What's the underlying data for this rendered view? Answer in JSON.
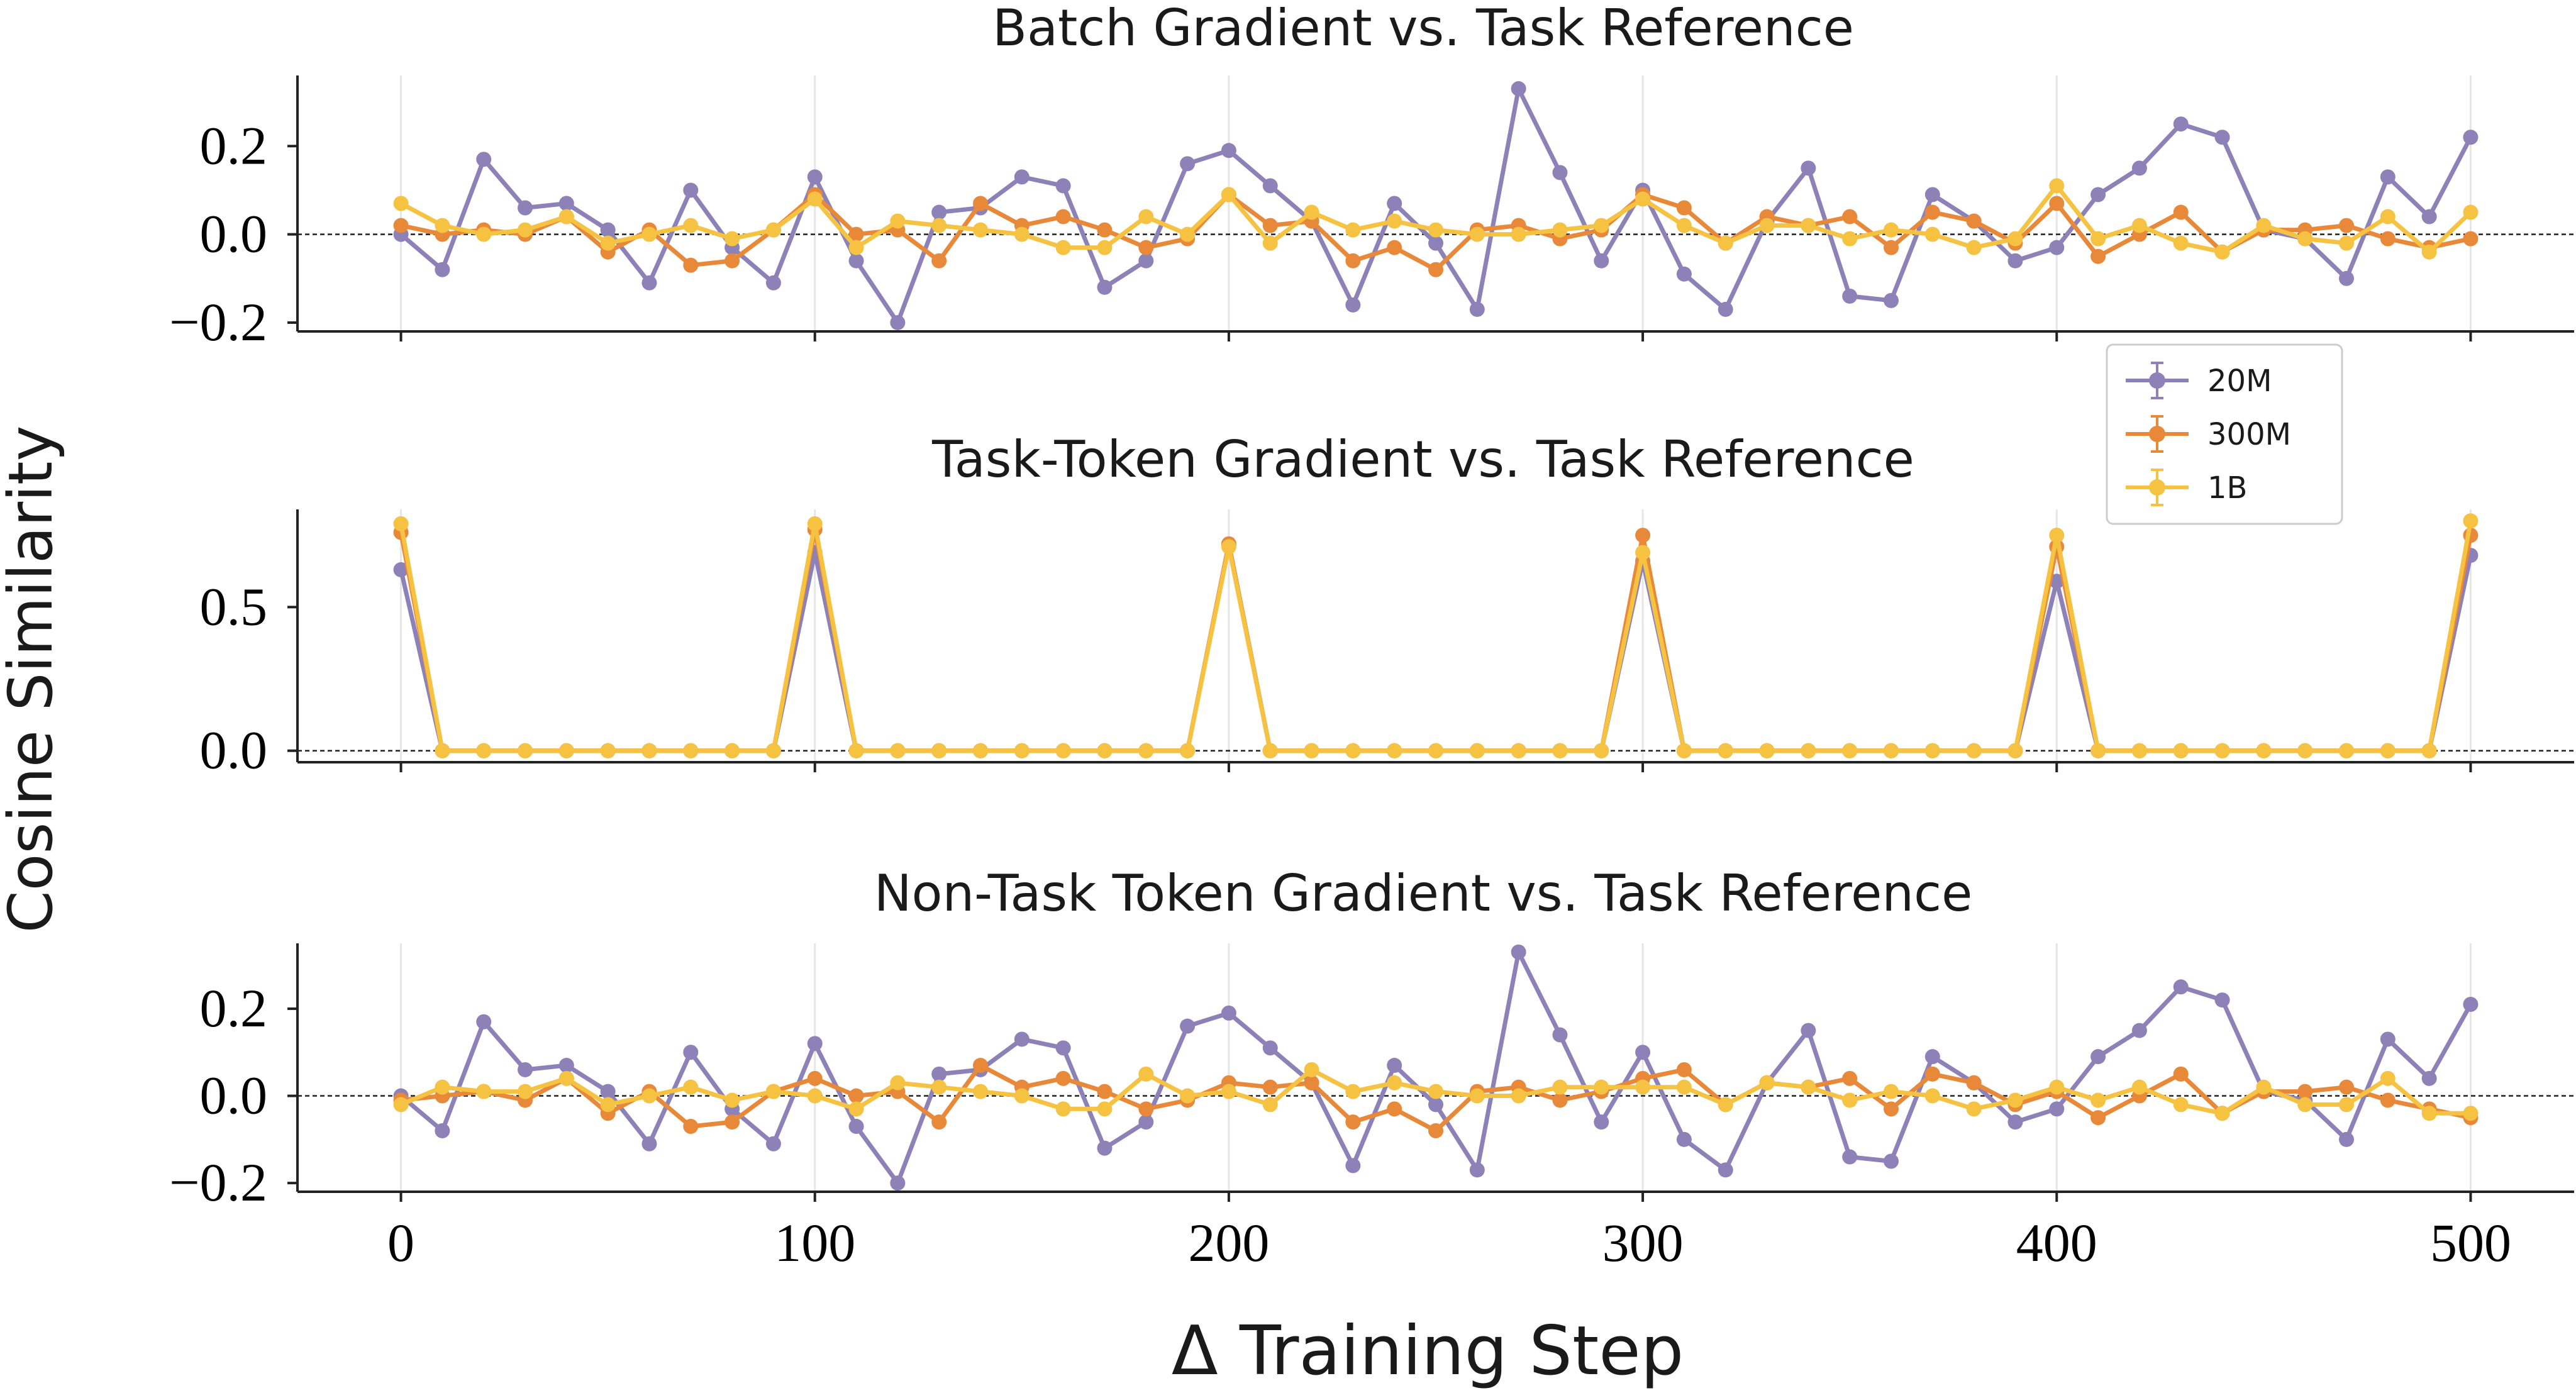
{
  "chart_data": [
    {
      "type": "line",
      "title": "Batch Gradient vs. Task Reference",
      "yticks": [
        -0.2,
        0.0,
        0.2
      ],
      "ytick_labels": [
        "−0.2",
        "0.0",
        "0.2"
      ],
      "ylim": [
        -0.22,
        0.36
      ],
      "xlim": [
        -25,
        525
      ],
      "x": [
        0,
        10,
        20,
        30,
        40,
        50,
        60,
        70,
        80,
        90,
        100,
        110,
        120,
        130,
        140,
        150,
        160,
        170,
        180,
        190,
        200,
        210,
        220,
        230,
        240,
        250,
        260,
        270,
        280,
        290,
        300,
        310,
        320,
        330,
        340,
        350,
        360,
        370,
        380,
        390,
        400,
        410,
        420,
        430,
        440,
        450,
        460,
        470,
        480,
        490,
        500
      ],
      "zero_reference_line": true,
      "series": [
        {
          "name": "20M",
          "color": "#8c82b8",
          "values": [
            0.0,
            -0.08,
            0.17,
            0.06,
            0.07,
            0.01,
            -0.11,
            0.1,
            -0.03,
            -0.11,
            0.13,
            -0.06,
            -0.2,
            0.05,
            0.06,
            0.13,
            0.11,
            -0.12,
            -0.06,
            0.16,
            0.19,
            0.11,
            0.03,
            -0.16,
            0.07,
            -0.02,
            -0.17,
            0.33,
            0.14,
            -0.06,
            0.1,
            -0.09,
            -0.17,
            0.03,
            0.15,
            -0.14,
            -0.15,
            0.09,
            0.03,
            -0.06,
            -0.03,
            0.09,
            0.15,
            0.25,
            0.22,
            0.01,
            -0.01,
            -0.1,
            0.13,
            0.04,
            0.22
          ]
        },
        {
          "name": "300M",
          "color": "#e8893a",
          "values": [
            0.02,
            0.0,
            0.01,
            0.0,
            0.04,
            -0.04,
            0.01,
            -0.07,
            -0.06,
            0.01,
            0.09,
            0.0,
            0.01,
            -0.06,
            0.07,
            0.02,
            0.04,
            0.01,
            -0.03,
            -0.01,
            0.09,
            0.02,
            0.03,
            -0.06,
            -0.03,
            -0.08,
            0.01,
            0.02,
            -0.01,
            0.01,
            0.09,
            0.06,
            -0.02,
            0.04,
            0.02,
            0.04,
            -0.03,
            0.05,
            0.03,
            -0.02,
            0.07,
            -0.05,
            0.0,
            0.05,
            -0.04,
            0.01,
            0.01,
            0.02,
            -0.01,
            -0.03,
            -0.01
          ]
        },
        {
          "name": "1B",
          "color": "#f5c242",
          "values": [
            0.07,
            0.02,
            0.0,
            0.01,
            0.04,
            -0.02,
            0.0,
            0.02,
            -0.01,
            0.01,
            0.08,
            -0.03,
            0.03,
            0.02,
            0.01,
            0.0,
            -0.03,
            -0.03,
            0.04,
            0.0,
            0.09,
            -0.02,
            0.05,
            0.01,
            0.03,
            0.01,
            0.0,
            0.0,
            0.01,
            0.02,
            0.08,
            0.02,
            -0.02,
            0.02,
            0.02,
            -0.01,
            0.01,
            0.0,
            -0.03,
            -0.01,
            0.11,
            -0.01,
            0.02,
            -0.02,
            -0.04,
            0.02,
            -0.01,
            -0.02,
            0.04,
            -0.04,
            0.05
          ]
        }
      ]
    },
    {
      "type": "line",
      "title": "Task-Token Gradient vs. Task Reference",
      "yticks": [
        0.0,
        0.5
      ],
      "ytick_labels": [
        "0.0",
        "0.5"
      ],
      "ylim": [
        -0.04,
        0.84
      ],
      "xlim": [
        -25,
        525
      ],
      "x": [
        0,
        10,
        20,
        30,
        40,
        50,
        60,
        70,
        80,
        90,
        100,
        110,
        120,
        130,
        140,
        150,
        160,
        170,
        180,
        190,
        200,
        210,
        220,
        230,
        240,
        250,
        260,
        270,
        280,
        290,
        300,
        310,
        320,
        330,
        340,
        350,
        360,
        370,
        380,
        390,
        400,
        410,
        420,
        430,
        440,
        450,
        460,
        470,
        480,
        490,
        500
      ],
      "zero_reference_line": true,
      "series": [
        {
          "name": "20M",
          "color": "#8c82b8",
          "values": [
            0.63,
            0,
            0,
            0,
            0,
            0,
            0,
            0,
            0,
            0,
            0.69,
            0,
            0,
            0,
            0,
            0,
            0,
            0,
            0,
            0,
            0.72,
            0,
            0,
            0,
            0,
            0,
            0,
            0,
            0,
            0,
            0.66,
            0,
            0,
            0,
            0,
            0,
            0,
            0,
            0,
            0,
            0.59,
            0,
            0,
            0,
            0,
            0,
            0,
            0,
            0,
            0,
            0.68
          ]
        },
        {
          "name": "300M",
          "color": "#e8893a",
          "values": [
            0.76,
            0,
            0,
            0,
            0,
            0,
            0,
            0,
            0,
            0,
            0.77,
            0,
            0,
            0,
            0,
            0,
            0,
            0,
            0,
            0,
            0.72,
            0,
            0,
            0,
            0,
            0,
            0,
            0,
            0,
            0,
            0.75,
            0,
            0,
            0,
            0,
            0,
            0,
            0,
            0,
            0,
            0.71,
            0,
            0,
            0,
            0,
            0,
            0,
            0,
            0,
            0,
            0.75
          ]
        },
        {
          "name": "1B",
          "color": "#f5c242",
          "values": [
            0.79,
            0,
            0,
            0,
            0,
            0,
            0,
            0,
            0,
            0,
            0.79,
            0,
            0,
            0,
            0,
            0,
            0,
            0,
            0,
            0,
            0.71,
            0,
            0,
            0,
            0,
            0,
            0,
            0,
            0,
            0,
            0.69,
            0,
            0,
            0,
            0,
            0,
            0,
            0,
            0,
            0,
            0.75,
            0,
            0,
            0,
            0,
            0,
            0,
            0,
            0,
            0,
            0.8
          ]
        }
      ]
    },
    {
      "type": "line",
      "title": "Non-Task Token Gradient vs. Task Reference",
      "yticks": [
        -0.2,
        0.0,
        0.2
      ],
      "ytick_labels": [
        "−0.2",
        "0.0",
        "0.2"
      ],
      "ylim": [
        -0.22,
        0.35
      ],
      "xlim": [
        -25,
        525
      ],
      "xticks": [
        0,
        100,
        200,
        300,
        400,
        500
      ],
      "xtick_labels": [
        "0",
        "100",
        "200",
        "300",
        "400",
        "500"
      ],
      "x": [
        0,
        10,
        20,
        30,
        40,
        50,
        60,
        70,
        80,
        90,
        100,
        110,
        120,
        130,
        140,
        150,
        160,
        170,
        180,
        190,
        200,
        210,
        220,
        230,
        240,
        250,
        260,
        270,
        280,
        290,
        300,
        310,
        320,
        330,
        340,
        350,
        360,
        370,
        380,
        390,
        400,
        410,
        420,
        430,
        440,
        450,
        460,
        470,
        480,
        490,
        500
      ],
      "zero_reference_line": true,
      "series": [
        {
          "name": "20M",
          "color": "#8c82b8",
          "values": [
            0.0,
            -0.08,
            0.17,
            0.06,
            0.07,
            0.01,
            -0.11,
            0.1,
            -0.03,
            -0.11,
            0.12,
            -0.07,
            -0.2,
            0.05,
            0.06,
            0.13,
            0.11,
            -0.12,
            -0.06,
            0.16,
            0.19,
            0.11,
            0.03,
            -0.16,
            0.07,
            -0.02,
            -0.17,
            0.33,
            0.14,
            -0.06,
            0.1,
            -0.1,
            -0.17,
            0.03,
            0.15,
            -0.14,
            -0.15,
            0.09,
            0.03,
            -0.06,
            -0.03,
            0.09,
            0.15,
            0.25,
            0.22,
            0.01,
            -0.01,
            -0.1,
            0.13,
            0.04,
            0.21
          ]
        },
        {
          "name": "300M",
          "color": "#e8893a",
          "values": [
            -0.01,
            0.0,
            0.01,
            -0.01,
            0.04,
            -0.04,
            0.01,
            -0.07,
            -0.06,
            0.01,
            0.04,
            0.0,
            0.01,
            -0.06,
            0.07,
            0.02,
            0.04,
            0.01,
            -0.03,
            -0.01,
            0.03,
            0.02,
            0.03,
            -0.06,
            -0.03,
            -0.08,
            0.01,
            0.02,
            -0.01,
            0.01,
            0.04,
            0.06,
            -0.02,
            0.03,
            0.02,
            0.04,
            -0.03,
            0.05,
            0.03,
            -0.02,
            0.01,
            -0.05,
            0.0,
            0.05,
            -0.04,
            0.01,
            0.01,
            0.02,
            -0.01,
            -0.03,
            -0.05
          ]
        },
        {
          "name": "1B",
          "color": "#f5c242",
          "values": [
            -0.02,
            0.02,
            0.01,
            0.01,
            0.04,
            -0.02,
            0.0,
            0.02,
            -0.01,
            0.01,
            0.0,
            -0.03,
            0.03,
            0.02,
            0.01,
            0.0,
            -0.03,
            -0.03,
            0.05,
            0.0,
            0.01,
            -0.02,
            0.06,
            0.01,
            0.03,
            0.01,
            0.0,
            0.0,
            0.02,
            0.02,
            0.02,
            0.02,
            -0.02,
            0.03,
            0.02,
            -0.01,
            0.01,
            0.0,
            -0.03,
            -0.01,
            0.02,
            -0.01,
            0.02,
            -0.02,
            -0.04,
            0.02,
            -0.02,
            -0.02,
            0.04,
            -0.04,
            -0.04
          ]
        }
      ]
    }
  ],
  "shared": {
    "ylabel": "Cosine Similarity",
    "xlabel": "Δ Training Step",
    "legend": {
      "placement": "right, between top and middle panels",
      "entries": [
        "20M",
        "300M",
        "1B"
      ]
    }
  }
}
